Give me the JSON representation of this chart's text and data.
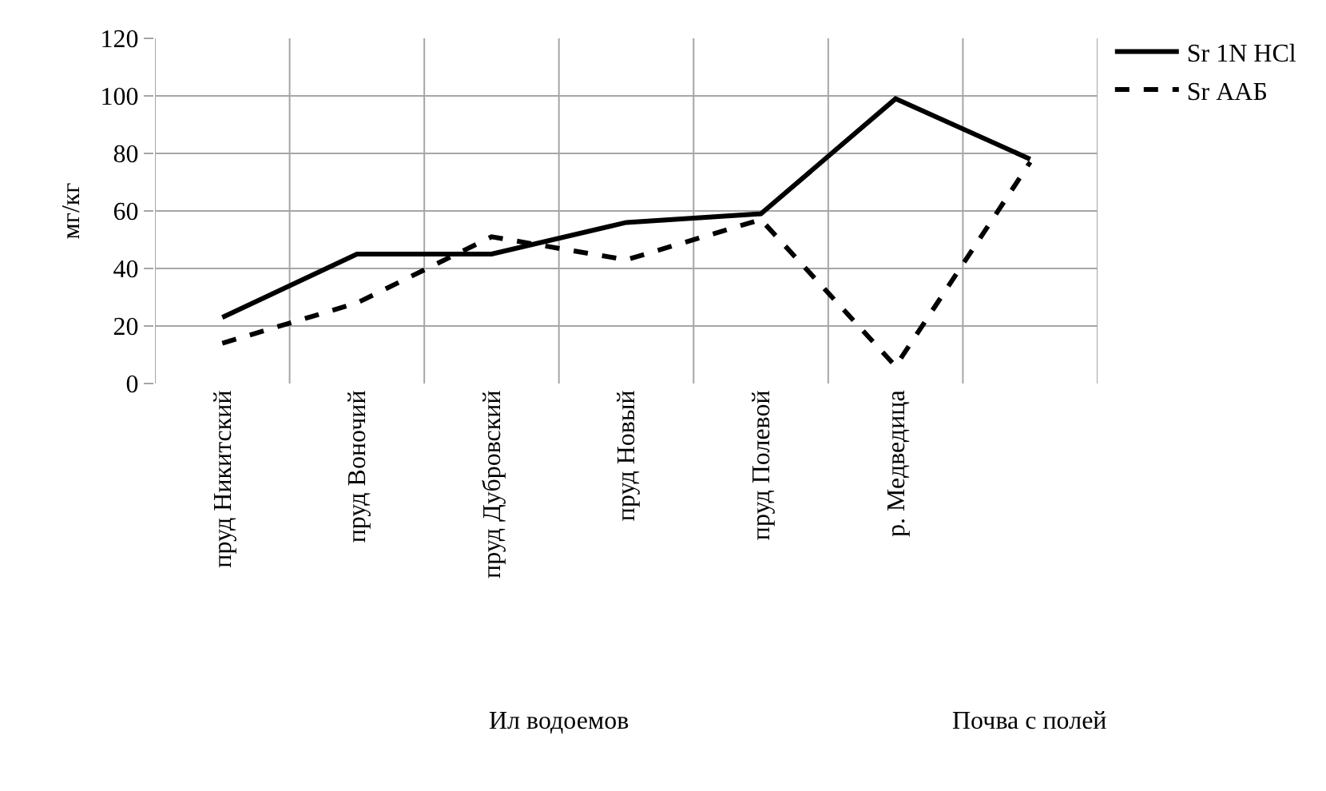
{
  "chart_data": {
    "type": "line",
    "ylabel": "мг/кг",
    "categories": [
      "пруд Никитский",
      "пруд Воночий",
      "пруд Дубровский",
      "пруд Новый",
      "пруд Полевой",
      "р. Медведица",
      null
    ],
    "series": [
      {
        "name": "Sr 1N HCl",
        "color": "#000000",
        "line_style": "solid",
        "values": [
          23,
          45,
          45,
          56,
          59,
          99,
          78
        ]
      },
      {
        "name": "Sr ААБ",
        "color": "#000000",
        "line_style": "dashed",
        "values": [
          14,
          28,
          51,
          43,
          57,
          6,
          77
        ]
      }
    ],
    "annotations": [
      "Ил водоемов",
      "Почва с полей"
    ],
    "ylim": [
      0,
      120
    ],
    "yticks": [
      0,
      20,
      40,
      60,
      80,
      100,
      120
    ],
    "grid": true,
    "legend": "top right",
    "marker": "none"
  }
}
